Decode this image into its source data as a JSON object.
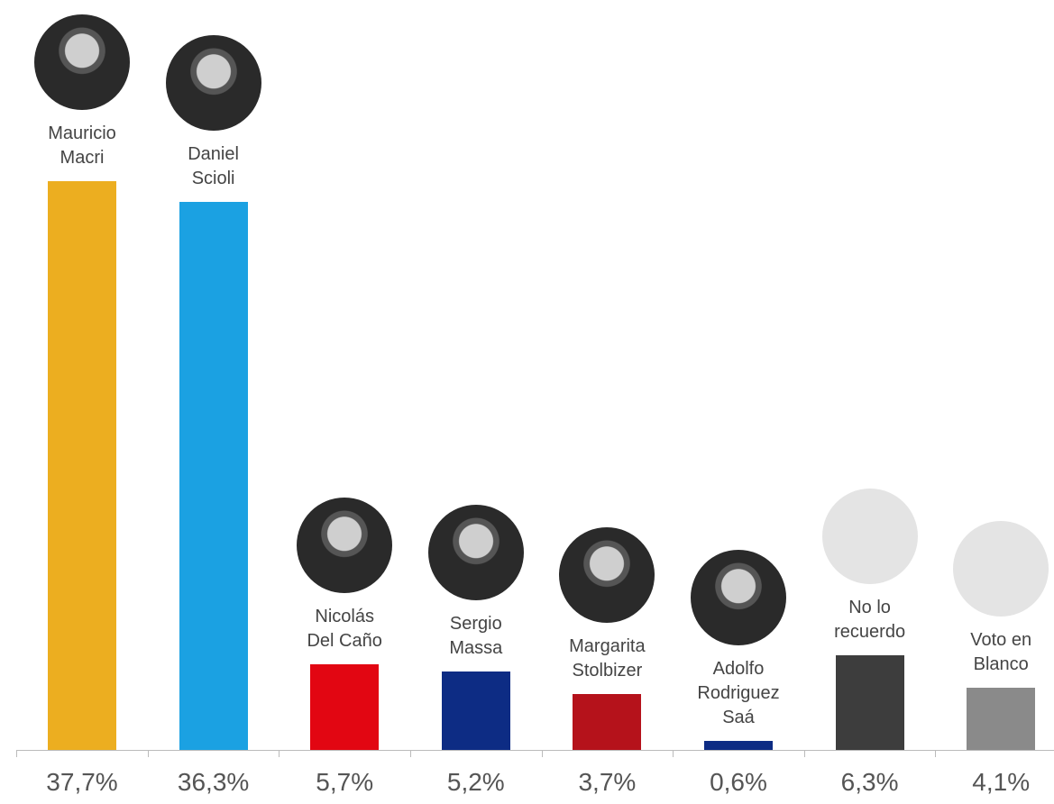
{
  "chart_data": {
    "type": "bar",
    "categories": [
      "Mauricio\nMacri",
      "Daniel\nScioli",
      "Nicolás\nDel Caño",
      "Sergio\nMassa",
      "Margarita\nStolbizer",
      "Adolfo\nRodriguez\nSaá",
      "No lo\nrecuerdo",
      "Voto en\nBlanco"
    ],
    "values": [
      37.7,
      36.3,
      5.7,
      5.2,
      3.7,
      0.6,
      6.3,
      4.1
    ],
    "value_labels": [
      "37,7%",
      "36,3%",
      "5,7%",
      "5,2%",
      "3,7%",
      "0,6%",
      "6,3%",
      "4,1%"
    ],
    "colors": [
      "#ecae20",
      "#1ba1e2",
      "#e20612",
      "#0d2c84",
      "#b5121b",
      "#0d2c84",
      "#3d3d3d",
      "#8a8a8a"
    ]
  }
}
